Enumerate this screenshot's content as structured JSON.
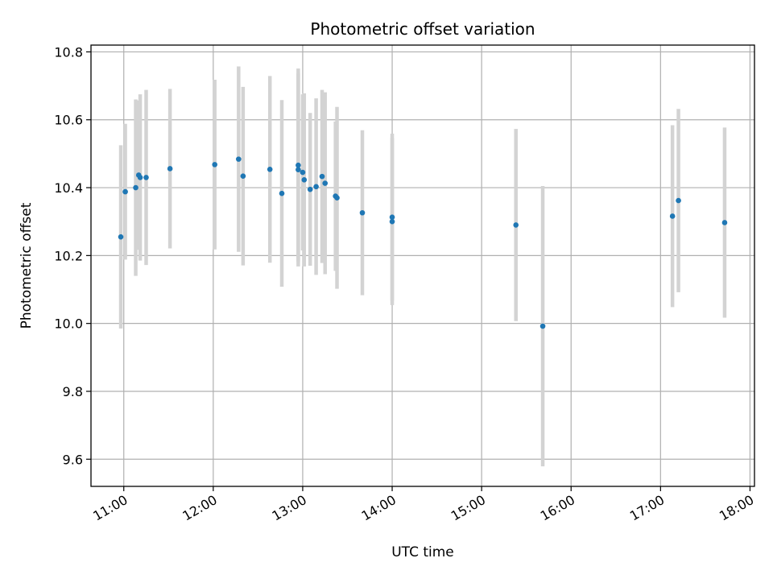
{
  "chart_data": {
    "type": "scatter",
    "title": "Photometric offset variation",
    "xlabel": "UTC time",
    "ylabel": "Photometric offset",
    "xlim": [
      "10:38",
      "18:03"
    ],
    "ylim": [
      9.52,
      10.82
    ],
    "x_ticks": [
      "11:00",
      "12:00",
      "13:00",
      "14:00",
      "15:00",
      "16:00",
      "17:00",
      "18:00"
    ],
    "y_ticks": [
      "9.6",
      "9.8",
      "10.0",
      "10.2",
      "10.4",
      "10.6",
      "10.8"
    ],
    "grid": true,
    "point_color": "#1f77b4",
    "errorbar_color": "#d3d3d3",
    "points": [
      {
        "time": "10:58",
        "y": 10.255,
        "yerr": 0.27
      },
      {
        "time": "11:01",
        "y": 10.388,
        "yerr": 0.2
      },
      {
        "time": "11:08",
        "y": 10.4,
        "yerr": 0.26
      },
      {
        "time": "11:10",
        "y": 10.437,
        "yerr": 0.22
      },
      {
        "time": "11:11",
        "y": 10.43,
        "yerr": 0.245
      },
      {
        "time": "11:15",
        "y": 10.43,
        "yerr": 0.258
      },
      {
        "time": "11:31",
        "y": 10.456,
        "yerr": 0.235
      },
      {
        "time": "12:01",
        "y": 10.468,
        "yerr": 0.25
      },
      {
        "time": "12:17",
        "y": 10.484,
        "yerr": 0.273
      },
      {
        "time": "12:20",
        "y": 10.434,
        "yerr": 0.263
      },
      {
        "time": "12:38",
        "y": 10.454,
        "yerr": 0.275
      },
      {
        "time": "12:46",
        "y": 10.383,
        "yerr": 0.275
      },
      {
        "time": "12:57",
        "y": 10.466,
        "yerr": 0.285
      },
      {
        "time": "12:57",
        "y": 10.453,
        "yerr": 0.285
      },
      {
        "time": "13:00",
        "y": 10.445,
        "yerr": 0.23
      },
      {
        "time": "13:01",
        "y": 10.423,
        "yerr": 0.255
      },
      {
        "time": "13:05",
        "y": 10.395,
        "yerr": 0.225
      },
      {
        "time": "13:09",
        "y": 10.403,
        "yerr": 0.26
      },
      {
        "time": "13:13",
        "y": 10.433,
        "yerr": 0.255
      },
      {
        "time": "13:15",
        "y": 10.413,
        "yerr": 0.268
      },
      {
        "time": "13:22",
        "y": 10.375,
        "yerr": 0.22
      },
      {
        "time": "13:23",
        "y": 10.37,
        "yerr": 0.268
      },
      {
        "time": "13:40",
        "y": 10.326,
        "yerr": 0.243
      },
      {
        "time": "14:00",
        "y": 10.313,
        "yerr": 0.246
      },
      {
        "time": "14:00",
        "y": 10.3,
        "yerr": 0.246
      },
      {
        "time": "15:23",
        "y": 10.29,
        "yerr": 0.283
      },
      {
        "time": "15:41",
        "y": 9.992,
        "yerr": 0.413
      },
      {
        "time": "17:08",
        "y": 10.316,
        "yerr": 0.268
      },
      {
        "time": "17:12",
        "y": 10.362,
        "yerr": 0.27
      },
      {
        "time": "17:43",
        "y": 10.297,
        "yerr": 0.28
      }
    ]
  }
}
